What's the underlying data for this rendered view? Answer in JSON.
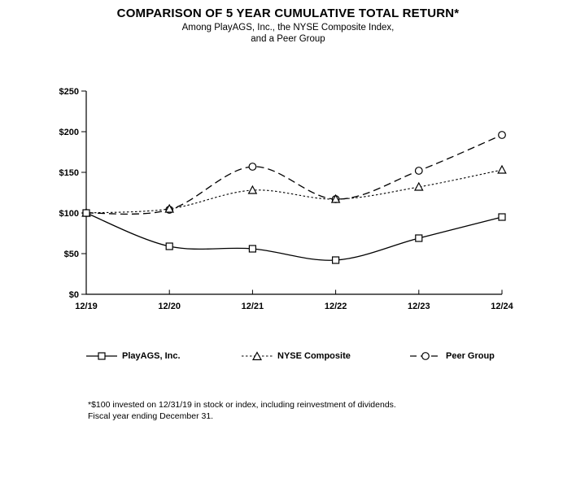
{
  "title": "COMPARISON OF 5 YEAR CUMULATIVE TOTAL RETURN*",
  "subtitle_line1": "Among PlayAGS, Inc., the NYSE Composite Index,",
  "subtitle_line2": "and a Peer Group",
  "footnote_line1": "*$100 invested on 12/31/19 in stock or index, including reinvestment of dividends.",
  "footnote_line2": "Fiscal year ending December 31.",
  "colors": {
    "background": "#ffffff",
    "line": "#000000",
    "text": "#000000",
    "marker_fill": "#ffffff"
  },
  "chart_data": {
    "type": "line",
    "title": "COMPARISON OF 5 YEAR CUMULATIVE TOTAL RETURN*",
    "categories": [
      "12/19",
      "12/20",
      "12/21",
      "12/22",
      "12/23",
      "12/24"
    ],
    "series": [
      {
        "name": "PlayAGS, Inc.",
        "marker": "square",
        "line_style": "solid",
        "values": [
          100,
          59,
          56,
          42,
          69,
          95
        ]
      },
      {
        "name": "NYSE Composite",
        "marker": "triangle",
        "line_style": "dotted",
        "values": [
          100,
          105,
          128,
          117,
          132,
          153
        ]
      },
      {
        "name": "Peer Group",
        "marker": "circle",
        "line_style": "dashed",
        "values": [
          100,
          104,
          157,
          117,
          152,
          196
        ]
      }
    ],
    "xlabel": "",
    "ylabel": "",
    "ylim": [
      0,
      250
    ],
    "ytick_step": 50,
    "ytick_prefix": "$",
    "ytick_labels": [
      "$0",
      "$50",
      "$100",
      "$150",
      "$200",
      "$250"
    ],
    "grid": false,
    "smoothed_lines": true,
    "legend_position": "bottom",
    "line_color": "#000000"
  }
}
